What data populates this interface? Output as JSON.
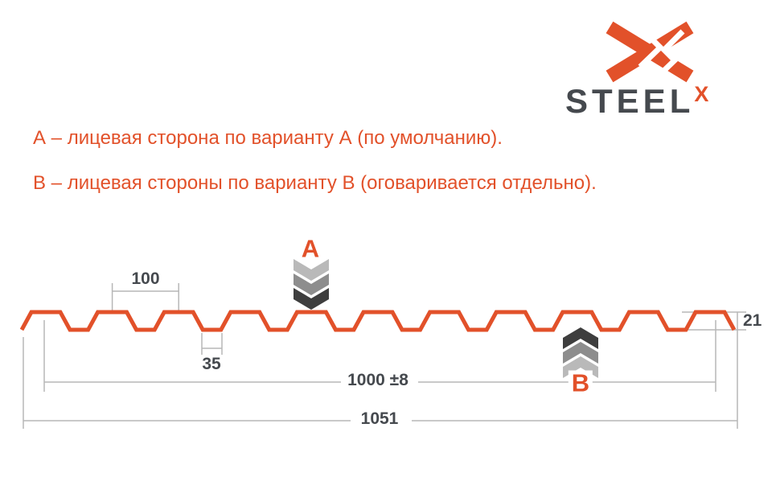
{
  "brand": {
    "wordmark": "STEEL",
    "wordmark_sup": "X"
  },
  "notes": {
    "variant_a": "А – лицевая сторона по варианту А (по умолчанию).",
    "variant_b": "В – лицевая стороны по варианту В (оговаривается отдельно)."
  },
  "drawing": {
    "marker_a_label": "A",
    "marker_b_label": "B",
    "dimensions": {
      "rib_pitch": "100",
      "rib_bottom_width": "35",
      "profile_height": "21",
      "working_width": "1000 ±8",
      "overall_width": "1051"
    }
  },
  "colors": {
    "accent_orange": "#e2512a",
    "dark_gray": "#45494e",
    "dim_line_gray": "#b7b7b7",
    "chevron_light": "#b9b9b9",
    "chevron_mid": "#8d8d8d",
    "chevron_dark": "#3e3e3e"
  }
}
